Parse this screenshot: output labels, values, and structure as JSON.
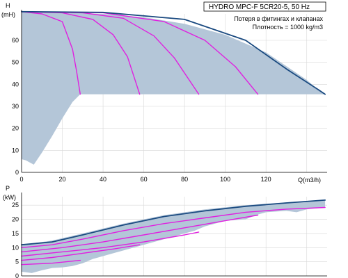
{
  "title": "HYDRO MPC-F 5CR20-5, 50 Hz",
  "notes": [
    "Потеря в фитингах и клапанах",
    "Плотность = 1000 kg/m3"
  ],
  "colors": {
    "envelope": "#b4c6d8",
    "max_curve": "#1a4a80",
    "speed_curves": "#e020e0",
    "grid": "#d8d8d8"
  },
  "chart_data": [
    {
      "type": "line",
      "name": "head",
      "y_unit_label": "H",
      "y_unit": "(mH)",
      "x_unit_label": "Q(m3/h)",
      "xlim": [
        0,
        150
      ],
      "ylim": [
        0,
        72
      ],
      "x_ticks": [
        "0",
        "20",
        "40",
        "60",
        "80",
        "100",
        "120"
      ],
      "y_ticks": [
        "0",
        "10",
        "20",
        "30",
        "40",
        "50",
        "60"
      ],
      "grid": true,
      "envelope": [
        [
          0,
          73
        ],
        [
          20,
          72.7
        ],
        [
          40,
          72
        ],
        [
          60,
          70.5
        ],
        [
          80,
          67.5
        ],
        [
          100,
          62.5
        ],
        [
          120,
          54.5
        ],
        [
          140,
          42
        ],
        [
          145,
          38
        ],
        [
          149,
          35.5
        ],
        [
          28.8,
          35.5
        ],
        [
          25,
          32
        ],
        [
          20,
          24.5
        ],
        [
          15,
          16.5
        ],
        [
          10,
          9
        ],
        [
          6,
          3.5
        ],
        [
          2,
          5.5
        ],
        [
          0,
          6
        ]
      ],
      "series": [
        {
          "values": [
            [
              0,
              73
            ],
            [
              10,
              72
            ],
            [
              20,
              68.5
            ],
            [
              25,
              56
            ],
            [
              27,
              46
            ],
            [
              28.8,
              35.5
            ]
          ]
        },
        {
          "values": [
            [
              0,
              73
            ],
            [
              20,
              72.5
            ],
            [
              35,
              69.5
            ],
            [
              45,
              62.5
            ],
            [
              52,
              52.5
            ],
            [
              58,
              35.5
            ]
          ]
        },
        {
          "values": [
            [
              0,
              73
            ],
            [
              30,
              72.5
            ],
            [
              50,
              70
            ],
            [
              65,
              62
            ],
            [
              75,
              52
            ],
            [
              87,
              35.5
            ]
          ]
        },
        {
          "values": [
            [
              0,
              73
            ],
            [
              40,
              72.5
            ],
            [
              70,
              68.5
            ],
            [
              90,
              60
            ],
            [
              105,
              48
            ],
            [
              116,
              35.5
            ]
          ]
        },
        {
          "values": [
            [
              0,
              73
            ],
            [
              40,
              72.7
            ],
            [
              80,
              69.5
            ],
            [
              110,
              60
            ],
            [
              130,
              47
            ],
            [
              145,
              38
            ],
            [
              149,
              35.5
            ]
          ]
        }
      ]
    },
    {
      "type": "line",
      "name": "power",
      "y_unit_label": "P",
      "y_unit": "(kW)",
      "xlim": [
        0,
        150
      ],
      "ylim": [
        0,
        28
      ],
      "y_ticks": [
        "0",
        "5",
        "10",
        "15",
        "20",
        "25"
      ],
      "grid": true,
      "envelope": [
        [
          0,
          11
        ],
        [
          15,
          12.5
        ],
        [
          30,
          15
        ],
        [
          50,
          18.5
        ],
        [
          70,
          21.5
        ],
        [
          90,
          23.5
        ],
        [
          110,
          25
        ],
        [
          130,
          26
        ],
        [
          149,
          26.8
        ],
        [
          149,
          24.2
        ],
        [
          140,
          23.5
        ],
        [
          135,
          22.5
        ],
        [
          130,
          23
        ],
        [
          120,
          22.5
        ],
        [
          115,
          21.5
        ],
        [
          110,
          20
        ],
        [
          100,
          19.5
        ],
        [
          95,
          18.5
        ],
        [
          90,
          17.5
        ],
        [
          85,
          16
        ],
        [
          80,
          15
        ],
        [
          75,
          14
        ],
        [
          70,
          13
        ],
        [
          65,
          12
        ],
        [
          60,
          11
        ],
        [
          55,
          10
        ],
        [
          50,
          9
        ],
        [
          45,
          8
        ],
        [
          40,
          7
        ],
        [
          35,
          6
        ],
        [
          30,
          4.5
        ],
        [
          25,
          3.5
        ],
        [
          20,
          3
        ],
        [
          15,
          2.8
        ],
        [
          10,
          2
        ],
        [
          5,
          1
        ],
        [
          0,
          1.5
        ]
      ],
      "series": [
        {
          "values": [
            [
              0,
              11
            ],
            [
              15,
              12
            ],
            [
              30,
              14.5
            ],
            [
              50,
              18
            ],
            [
              70,
              21
            ],
            [
              90,
              23
            ],
            [
              110,
              24.6
            ],
            [
              130,
              25.8
            ],
            [
              149,
              26.8
            ]
          ]
        },
        {
          "values": [
            [
              0,
              10
            ],
            [
              15,
              11
            ],
            [
              30,
              13
            ],
            [
              50,
              16
            ],
            [
              70,
              18.5
            ],
            [
              90,
              20.5
            ],
            [
              110,
              22.5
            ],
            [
              130,
              23.6
            ],
            [
              149,
              24.2
            ]
          ]
        },
        {
          "values": [
            [
              0,
              8.5
            ],
            [
              20,
              10
            ],
            [
              40,
              12
            ],
            [
              60,
              14.5
            ],
            [
              80,
              17
            ],
            [
              100,
              19.5
            ],
            [
              116,
              21.5
            ]
          ]
        },
        {
          "values": [
            [
              0,
              7
            ],
            [
              20,
              8.5
            ],
            [
              40,
              10
            ],
            [
              60,
              12
            ],
            [
              80,
              14.5
            ],
            [
              87,
              15.5
            ]
          ]
        },
        {
          "values": [
            [
              0,
              5.5
            ],
            [
              15,
              6.5
            ],
            [
              30,
              8
            ],
            [
              45,
              9.5
            ],
            [
              58,
              11
            ]
          ]
        },
        {
          "values": [
            [
              0,
              4
            ],
            [
              15,
              4.5
            ],
            [
              28.8,
              5.5
            ]
          ]
        }
      ]
    }
  ]
}
